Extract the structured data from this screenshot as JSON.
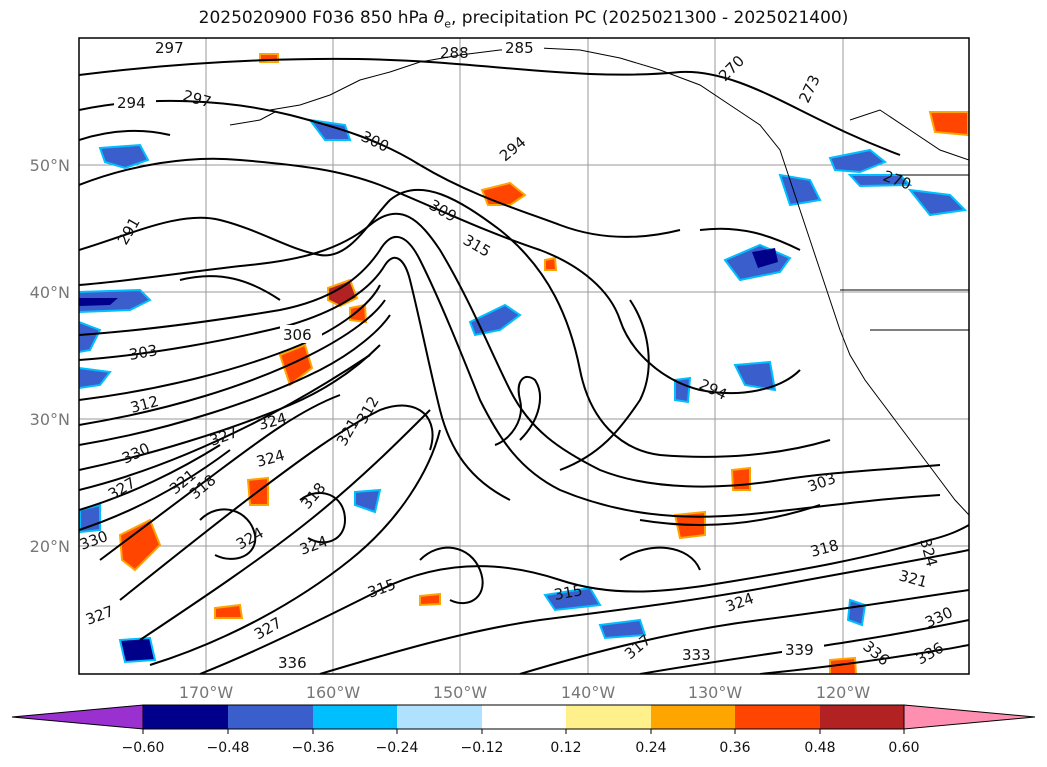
{
  "title_main": "2025020900 F036 850 hPa ",
  "title_theta": "θ",
  "title_sub": "e",
  "title_rest": ", precipitation PC (2025021300 - 2025021400)",
  "lon_labels": [
    "170°W",
    "160°W",
    "150°W",
    "140°W",
    "130°W",
    "120°W"
  ],
  "lat_labels": [
    "50°N",
    "40°N",
    "30°N",
    "20°N"
  ],
  "colorbar": {
    "colors": [
      "#9b30d0",
      "#00008b",
      "#3a5fcd",
      "#00bfff",
      "#b0e2ff",
      "#ffffff",
      "#fff08c",
      "#ffa500",
      "#ff4500",
      "#b22222",
      "#ff8fb0"
    ],
    "tick_labels": [
      "−0.60",
      "−0.48",
      "−0.36",
      "−0.24",
      "−0.12",
      "0.12",
      "0.24",
      "0.36",
      "0.48",
      "0.60"
    ]
  },
  "contour_labels": [
    "297",
    "285",
    "288",
    "270",
    "273",
    "294",
    "297",
    "300",
    "294",
    "291",
    "309",
    "315",
    "270",
    "306",
    "303",
    "312",
    "324",
    "327",
    "330",
    "324",
    "321",
    "312",
    "294",
    "303",
    "327",
    "318",
    "321",
    "324",
    "324",
    "318",
    "330",
    "324",
    "321",
    "315",
    "318",
    "324",
    "327",
    "327",
    "336",
    "315",
    "317",
    "333",
    "339",
    "336",
    "336",
    "330"
  ]
}
